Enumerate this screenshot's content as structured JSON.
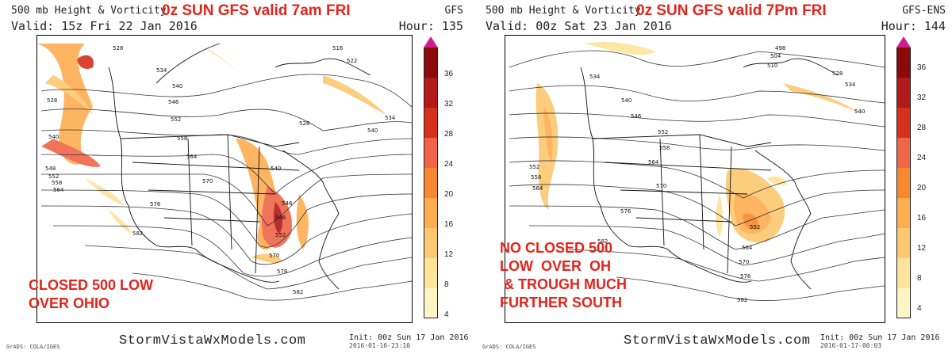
{
  "left_panel": {
    "title": "500 mb Height & Vorticity",
    "headline": "0z SUN  GFS   valid  7am FRI",
    "model": "GFS",
    "valid": "Valid: 15z Fri 22 Jan 2016",
    "hour": "Hour: 135",
    "annotation": "CLOSED 500 LOW\nOVER OHIO",
    "brand": "StormVistaWxModels.com",
    "init": "Init: 00z Sun 17 Jan 2016",
    "stamp": "2016-01-16-23:10",
    "grads": "GrADS: COLA/IGES",
    "contour_labels": [
      "528",
      "534",
      "540",
      "546",
      "552",
      "558",
      "564",
      "570",
      "576",
      "582",
      "516",
      "522",
      "548",
      "546",
      "540",
      "552",
      "564",
      "570",
      "578",
      "582"
    ]
  },
  "right_panel": {
    "title": "500 mb Height & Vorticity",
    "headline": "0z SUN  GFS   valid  7Pm FRI",
    "model": "GFS-ENS",
    "valid": "Valid: 00z Sat 23 Jan 2016",
    "hour": "Hour: 144",
    "annotation": "NO CLOSED 500\nLOW  OVER  OH\n & TROUGH MUCH\nFURTHER SOUTH",
    "brand": "StormVistaWxModels.com",
    "init": "Init: 00z Sun 17 Jan 2016",
    "stamp": "2016-01-17-00:03",
    "grads": "GrADS: COLA/IGES",
    "contour_labels": [
      "498",
      "504",
      "510",
      "534",
      "540",
      "546",
      "552",
      "558",
      "564",
      "570",
      "576",
      "582",
      "552",
      "558",
      "564",
      "552",
      "564",
      "570",
      "576",
      "582",
      "528",
      "534",
      "540"
    ]
  },
  "colorbar": {
    "labels": [
      "36",
      "32",
      "28",
      "24",
      "20",
      "16",
      "12",
      "8",
      "4"
    ],
    "colors": [
      "#8b0a0a",
      "#b21919",
      "#d7301f",
      "#ef6548",
      "#f7882e",
      "#fdae50",
      "#fdc871",
      "#fee39b",
      "#fff5c4"
    ]
  }
}
